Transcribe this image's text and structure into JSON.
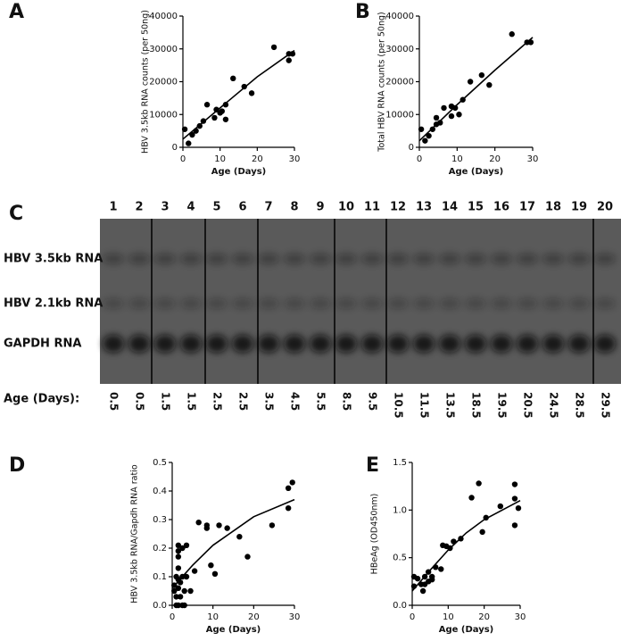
{
  "panel_labels": [
    "A",
    "B",
    "C",
    "D",
    "E"
  ],
  "chart_data": [
    {
      "type": "scatter",
      "x_label": "Age (Days)",
      "y_label": "HBV 3.5kb RNA counts (per 50ng)",
      "xlim": [
        0,
        30
      ],
      "xticks": [
        0,
        10,
        20,
        30
      ],
      "ylim": [
        0,
        40000
      ],
      "yticks": [
        0,
        10000,
        20000,
        30000,
        40000
      ],
      "color": "#000000",
      "x": [
        0.5,
        1.5,
        2.5,
        3.5,
        4.5,
        5.5,
        6.5,
        8.5,
        9,
        10,
        10.5,
        11.5,
        11.5,
        13.5,
        16.5,
        18.5,
        24.5,
        28.5,
        28.5,
        29.5
      ],
      "values": [
        5500,
        1200,
        3800,
        5000,
        6500,
        8000,
        13000,
        9000,
        11500,
        10500,
        11000,
        8500,
        13000,
        21000,
        18500,
        16500,
        30500,
        26500,
        28500,
        28500
      ],
      "fit": {
        "x": [
          0,
          10,
          20,
          30
        ],
        "values": [
          2500,
          12000,
          21500,
          29500
        ]
      }
    },
    {
      "type": "scatter",
      "x_label": "Age (Days)",
      "y_label": "Total HBV RNA counts (per 50ng)",
      "xlim": [
        0,
        30
      ],
      "xticks": [
        0,
        10,
        20,
        30
      ],
      "ylim": [
        0,
        40000
      ],
      "yticks": [
        0,
        10000,
        20000,
        30000,
        40000
      ],
      "color": "#000000",
      "x": [
        0.5,
        1.5,
        2.5,
        3.5,
        4.5,
        4.5,
        5.5,
        6.5,
        8.5,
        8.5,
        9.5,
        10.5,
        11.5,
        13.5,
        16.5,
        18.5,
        24.5,
        28.5,
        29.5
      ],
      "values": [
        5500,
        2000,
        3500,
        5500,
        7000,
        9000,
        7500,
        12000,
        9500,
        12500,
        12000,
        10000,
        14500,
        20000,
        22000,
        19000,
        34500,
        32000,
        32000
      ],
      "fit": {
        "x": [
          0,
          10,
          20,
          30
        ],
        "values": [
          2000,
          13000,
          23500,
          33500
        ]
      }
    },
    {
      "type": "scatter",
      "x_label": "Age (Days)",
      "y_label": "HBV 3.5kb RNA/Gapdh RNA ratio",
      "xlim": [
        0,
        30
      ],
      "xticks": [
        0,
        10,
        20,
        30
      ],
      "ylim": [
        0,
        0.5
      ],
      "yticks": [
        {
          "value": 0,
          "label": "0.0"
        },
        0.1,
        0.2,
        0.3,
        0.4,
        0.5
      ],
      "color": "#000000",
      "x": [
        0.5,
        0.5,
        1,
        1,
        1,
        1.5,
        1.5,
        1.5,
        1.5,
        1.5,
        1.5,
        1.5,
        2,
        2,
        2.5,
        2.5,
        2.5,
        3,
        3,
        3.5,
        3.5,
        4.5,
        5.5,
        6.5,
        8.5,
        8.5,
        9.5,
        10.5,
        11.5,
        13.5,
        16.5,
        18.5,
        24.5,
        28.5,
        28.5,
        29.5
      ],
      "values": [
        0.07,
        0.05,
        0.1,
        0.0,
        0.03,
        0.19,
        0.21,
        0.17,
        0.13,
        0.09,
        0.06,
        0.0,
        0.08,
        0.03,
        0.2,
        0.1,
        0.0,
        0.05,
        0.0,
        0.21,
        0.1,
        0.05,
        0.12,
        0.29,
        0.28,
        0.27,
        0.14,
        0.11,
        0.28,
        0.27,
        0.24,
        0.17,
        0.28,
        0.41,
        0.34,
        0.43
      ],
      "fit": {
        "x": [
          0,
          5,
          10,
          15,
          20,
          30
        ],
        "values": [
          0.06,
          0.14,
          0.21,
          0.26,
          0.31,
          0.37
        ]
      }
    },
    {
      "type": "scatter",
      "x_label": "Age (Days)",
      "y_label": "HBeAg (OD450nm)",
      "xlim": [
        0,
        30
      ],
      "xticks": [
        0,
        10,
        20,
        30
      ],
      "ylim": [
        0,
        1.5
      ],
      "yticks": [
        {
          "value": 0,
          "label": "0.0"
        },
        0.5,
        {
          "value": 1,
          "label": "1.0"
        },
        1.5
      ],
      "color": "#000000",
      "x": [
        0.5,
        0.5,
        1.5,
        2.5,
        3,
        3.5,
        3.5,
        4.5,
        4.5,
        5.5,
        5.5,
        6.5,
        8,
        8.5,
        9.5,
        10.5,
        11.5,
        13.5,
        16.5,
        18.5,
        19.5,
        20.5,
        24.5,
        28.5,
        28.5,
        28.5,
        29.5
      ],
      "values": [
        0.3,
        0.2,
        0.28,
        0.22,
        0.15,
        0.3,
        0.22,
        0.35,
        0.25,
        0.3,
        0.27,
        0.4,
        0.38,
        0.63,
        0.62,
        0.6,
        0.67,
        0.7,
        1.13,
        1.28,
        0.77,
        0.92,
        1.04,
        1.27,
        1.12,
        0.84,
        1.02
      ],
      "fit": {
        "x": [
          0,
          5,
          10,
          15,
          20,
          30
        ],
        "values": [
          0.15,
          0.37,
          0.58,
          0.76,
          0.9,
          1.1
        ]
      }
    }
  ],
  "blot": {
    "lanes": [
      "1",
      "2",
      "3",
      "4",
      "5",
      "6",
      "7",
      "8",
      "9",
      "10",
      "11",
      "12",
      "13",
      "14",
      "15",
      "16",
      "17",
      "18",
      "19",
      "20"
    ],
    "bands": [
      "HBV 3.5kb RNA",
      "HBV 2.1kb RNA",
      "GAPDH RNA"
    ],
    "age_label": "Age (Days):",
    "ages": [
      "0.5",
      "0.5",
      "1.5",
      "1.5",
      "2.5",
      "2.5",
      "3.5",
      "4.5",
      "5.5",
      "8.5",
      "9.5",
      "10.5",
      "11.5",
      "13.5",
      "18.5",
      "19.5",
      "20.5",
      "24.5",
      "28.5",
      "29.5"
    ]
  }
}
